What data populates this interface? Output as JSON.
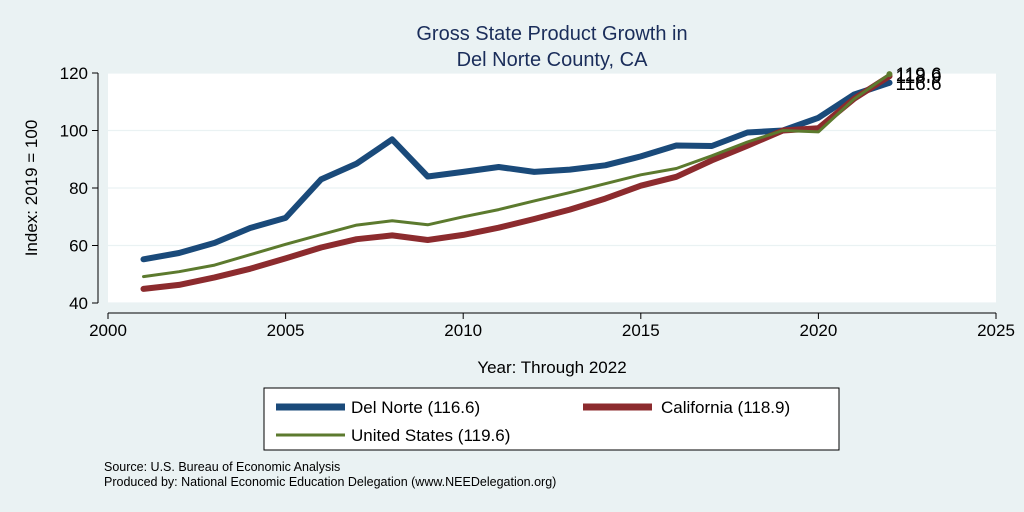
{
  "chart_data": {
    "type": "line",
    "title": [
      "Gross State Product Growth in",
      "Del Norte County, CA"
    ],
    "xlabel": "Year: Through 2022",
    "ylabel": "Index: 2019 = 100",
    "xlim": [
      2000,
      2025
    ],
    "ylim": [
      40,
      120
    ],
    "x_ticks": [
      2000,
      2005,
      2010,
      2015,
      2020,
      2025
    ],
    "y_ticks": [
      40,
      60,
      80,
      100,
      120
    ],
    "grid": true,
    "x": [
      2001,
      2002,
      2003,
      2004,
      2005,
      2006,
      2007,
      2008,
      2009,
      2010,
      2011,
      2012,
      2013,
      2014,
      2015,
      2016,
      2017,
      2018,
      2019,
      2020,
      2021,
      2022
    ],
    "series": [
      {
        "name": "Del Norte",
        "legend_label": "Del Norte  (116.6)",
        "color": "#1a4a7a",
        "end_label": "116.6",
        "values": [
          55.2,
          57.4,
          60.9,
          66.1,
          69.6,
          83.0,
          88.5,
          96.9,
          84.0,
          85.6,
          87.3,
          85.6,
          86.4,
          87.9,
          91.0,
          94.8,
          94.6,
          99.3,
          100.0,
          104.4,
          112.5,
          116.6
        ]
      },
      {
        "name": "California",
        "legend_label": "California (118.9)",
        "color": "#8c2b2e",
        "end_label": "118.9",
        "values": [
          44.9,
          46.3,
          48.9,
          51.9,
          55.5,
          59.3,
          62.2,
          63.5,
          61.9,
          63.7,
          66.2,
          69.2,
          72.5,
          76.3,
          80.8,
          83.9,
          89.6,
          94.7,
          100.0,
          100.8,
          111.0,
          118.9
        ]
      },
      {
        "name": "United States",
        "legend_label": "United States (119.6)",
        "color": "#5c7a2e",
        "end_label": "119.6",
        "values": [
          49.2,
          50.9,
          53.2,
          56.8,
          60.4,
          63.8,
          67.1,
          68.6,
          67.2,
          70.0,
          72.5,
          75.5,
          78.4,
          81.5,
          84.6,
          86.8,
          91.2,
          96.0,
          100.0,
          99.5,
          110.9,
          119.6
        ]
      }
    ],
    "legend_position": "bottom"
  },
  "footer": {
    "source": "Source: U.S. Bureau of Economic Analysis",
    "produced_by": "Produced by: National Economic Education Delegation (www.NEEDelegation.org)"
  }
}
